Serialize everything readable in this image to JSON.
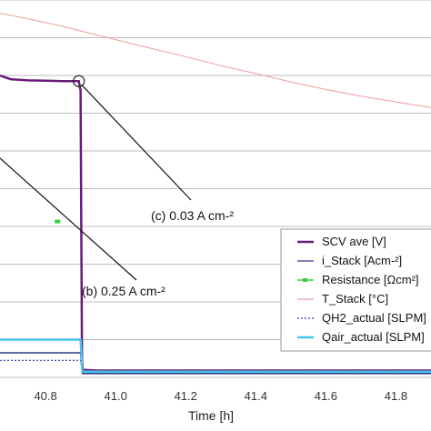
{
  "chart_data": {
    "type": "line",
    "xlabel": "Time [h]",
    "xlim": [
      40.67,
      41.9
    ],
    "ylim": [
      0,
      1
    ],
    "x_ticks": [
      "40.8",
      "41.0",
      "41.2",
      "41.4",
      "41.6",
      "41.8"
    ],
    "x_tick_values": [
      40.8,
      41.0,
      41.2,
      41.4,
      41.6,
      41.8
    ],
    "grid": true,
    "legend_position": "right",
    "series": [
      {
        "name": "SCV ave [V]",
        "color": "#6a1b7a",
        "points": [
          [
            40.67,
            0.8
          ],
          [
            40.7,
            0.79
          ],
          [
            40.75,
            0.787
          ],
          [
            40.8,
            0.786
          ],
          [
            40.85,
            0.785
          ],
          [
            40.895,
            0.785
          ],
          [
            40.9,
            0.76
          ],
          [
            40.902,
            0.4
          ],
          [
            40.904,
            0.05
          ],
          [
            40.906,
            0.02
          ],
          [
            40.95,
            0.018
          ],
          [
            41.9,
            0.018
          ]
        ]
      },
      {
        "name": "i_Stack [Acm-²]",
        "color": "#2e3a87",
        "points": [
          [
            40.67,
            0.065
          ],
          [
            40.8,
            0.065
          ],
          [
            40.9,
            0.065
          ],
          [
            40.905,
            0.01
          ],
          [
            41.9,
            0.01
          ]
        ]
      },
      {
        "name": "Resistance [Ωcm²]",
        "color": "#3ccf3c",
        "points": [
          [
            40.834,
            0.413
          ]
        ]
      },
      {
        "name": "T_Stack [°C]",
        "color": "#e8a09a",
        "points": [
          [
            40.67,
            0.965
          ],
          [
            40.75,
            0.95
          ],
          [
            40.85,
            0.93
          ],
          [
            40.9,
            0.918
          ],
          [
            41.0,
            0.895
          ],
          [
            41.1,
            0.872
          ],
          [
            41.2,
            0.85
          ],
          [
            41.3,
            0.826
          ],
          [
            41.4,
            0.805
          ],
          [
            41.5,
            0.783
          ],
          [
            41.6,
            0.763
          ],
          [
            41.7,
            0.745
          ],
          [
            41.8,
            0.73
          ],
          [
            41.9,
            0.715
          ]
        ]
      },
      {
        "name": "QH2_actual [SLPM]",
        "color": "#2b3f9e",
        "points": [
          [
            40.67,
            0.045
          ],
          [
            40.9,
            0.045
          ],
          [
            40.905,
            0.012
          ],
          [
            41.9,
            0.012
          ]
        ]
      },
      {
        "name": "Qair_actual [SLPM]",
        "color": "#48c4e8",
        "points": [
          [
            40.67,
            0.1
          ],
          [
            40.9,
            0.1
          ],
          [
            40.905,
            0.015
          ],
          [
            41.9,
            0.015
          ]
        ]
      }
    ],
    "annotations": [
      {
        "text": "(c) 0.03 A cm-²",
        "target": [
          40.895,
          0.785
        ]
      },
      {
        "text": "(b) 0.25 A cm-²",
        "target": [
          40.67,
          0.7
        ]
      }
    ]
  }
}
